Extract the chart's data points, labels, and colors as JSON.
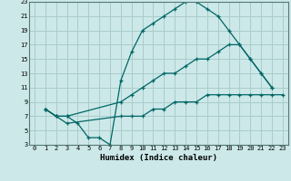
{
  "xlabel": "Humidex (Indice chaleur)",
  "bg_color": "#cce8e8",
  "grid_color": "#aacccc",
  "line_color": "#006666",
  "xlim": [
    -0.5,
    23.5
  ],
  "ylim": [
    3,
    23
  ],
  "xticks": [
    0,
    1,
    2,
    3,
    4,
    5,
    6,
    7,
    8,
    9,
    10,
    11,
    12,
    13,
    14,
    15,
    16,
    17,
    18,
    19,
    20,
    21,
    22,
    23
  ],
  "yticks": [
    3,
    5,
    7,
    9,
    11,
    13,
    15,
    17,
    19,
    21,
    23
  ],
  "line1_x": [
    1,
    2,
    3,
    4,
    5,
    6,
    7,
    8,
    9,
    10,
    11,
    12,
    13,
    14,
    15,
    16,
    17,
    18,
    19,
    20,
    21,
    22
  ],
  "line1_y": [
    8,
    7,
    7,
    6,
    4,
    4,
    3,
    12,
    16,
    19,
    20,
    21,
    22,
    23,
    23,
    22,
    21,
    19,
    17,
    15,
    13,
    11
  ],
  "line2_x": [
    1,
    2,
    3,
    8,
    9,
    10,
    11,
    12,
    13,
    14,
    15,
    16,
    17,
    18,
    19,
    20,
    21,
    22
  ],
  "line2_y": [
    8,
    7,
    7,
    9,
    10,
    11,
    12,
    13,
    13,
    14,
    15,
    15,
    16,
    17,
    17,
    15,
    13,
    11
  ],
  "line3_x": [
    1,
    2,
    3,
    8,
    9,
    10,
    11,
    12,
    13,
    14,
    15,
    16,
    17,
    18,
    19,
    20,
    21,
    22,
    23
  ],
  "line3_y": [
    8,
    7,
    6,
    7,
    7,
    7,
    8,
    8,
    9,
    9,
    9,
    10,
    10,
    10,
    10,
    10,
    10,
    10,
    10
  ]
}
